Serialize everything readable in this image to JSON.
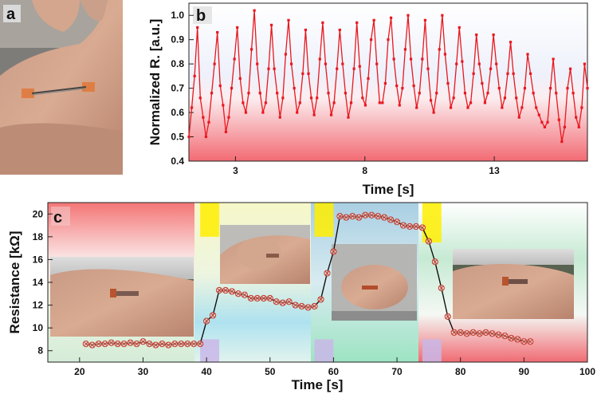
{
  "panels": {
    "a": {
      "label": "a"
    },
    "b": {
      "label": "b"
    },
    "c": {
      "label": "c"
    }
  },
  "colors": {
    "pulse_line": "#e8181f",
    "resistance_line": "#111111",
    "resistance_marker": "#c0392b"
  },
  "chart_data": [
    {
      "id": "b",
      "type": "line",
      "xlabel": "Time [s]",
      "ylabel": "Normalized R. [a.u.]",
      "xlim": [
        1.2,
        16.6
      ],
      "ylim": [
        0.4,
        1.05
      ],
      "xticks": [
        3,
        8,
        13
      ],
      "yticks": [
        0.4,
        0.5,
        0.6,
        0.7,
        0.8,
        0.9,
        1.0
      ],
      "grid": false,
      "series": [
        {
          "x": [
            1.2,
            1.31,
            1.42,
            1.53,
            1.64,
            1.75,
            1.86,
            1.97,
            2.08,
            2.19,
            2.3,
            2.41,
            2.52,
            2.63,
            2.74,
            2.85,
            2.96,
            3.07,
            3.18,
            3.29,
            3.4,
            3.51,
            3.62,
            3.73,
            3.84,
            3.95,
            4.06,
            4.17,
            4.28,
            4.39,
            4.5,
            4.61,
            4.72,
            4.83,
            4.94,
            5.05,
            5.16,
            5.27,
            5.38,
            5.49,
            5.6,
            5.71,
            5.82,
            5.93,
            6.04,
            6.15,
            6.26,
            6.37,
            6.48,
            6.59,
            6.7,
            6.81,
            6.92,
            7.03,
            7.14,
            7.25,
            7.36,
            7.47,
            7.58,
            7.69,
            7.8,
            7.91,
            8.02,
            8.13,
            8.24,
            8.35,
            8.46,
            8.57,
            8.68,
            8.79,
            8.9,
            9.01,
            9.12,
            9.23,
            9.34,
            9.45,
            9.56,
            9.67,
            9.78,
            9.89,
            10.0,
            10.11,
            10.22,
            10.33,
            10.44,
            10.55,
            10.66,
            10.77,
            10.88,
            10.99,
            11.1,
            11.21,
            11.32,
            11.43,
            11.54,
            11.65,
            11.76,
            11.87,
            11.98,
            12.09,
            12.2,
            12.31,
            12.42,
            12.53,
            12.64,
            12.75,
            12.86,
            12.97,
            13.08,
            13.19,
            13.3,
            13.41,
            13.52,
            13.63,
            13.74,
            13.85,
            13.96,
            14.07,
            14.18,
            14.29,
            14.4,
            14.51,
            14.62,
            14.73,
            14.84,
            14.95,
            15.06,
            15.17,
            15.28,
            15.39,
            15.5,
            15.61,
            15.72,
            15.83,
            15.94,
            16.05,
            16.16,
            16.27,
            16.38,
            16.49,
            16.6
          ],
          "y": [
            0.5,
            0.62,
            0.75,
            0.95,
            0.66,
            0.58,
            0.5,
            0.56,
            0.68,
            0.8,
            0.93,
            0.71,
            0.63,
            0.52,
            0.58,
            0.7,
            0.82,
            0.95,
            0.74,
            0.64,
            0.6,
            0.68,
            0.86,
            1.02,
            0.8,
            0.68,
            0.6,
            0.64,
            0.78,
            0.96,
            0.78,
            0.68,
            0.58,
            0.66,
            0.84,
            0.98,
            0.8,
            0.7,
            0.6,
            0.64,
            0.76,
            0.94,
            0.76,
            0.66,
            0.59,
            0.66,
            0.82,
            0.97,
            0.8,
            0.68,
            0.59,
            0.64,
            0.78,
            0.94,
            0.8,
            0.68,
            0.58,
            0.64,
            0.78,
            0.97,
            0.79,
            0.66,
            0.63,
            0.74,
            0.9,
            0.98,
            0.8,
            0.64,
            0.64,
            0.72,
            0.9,
            0.99,
            0.82,
            0.71,
            0.63,
            0.7,
            0.86,
            1.0,
            0.82,
            0.71,
            0.62,
            0.68,
            0.82,
            0.98,
            0.78,
            0.65,
            0.6,
            0.68,
            0.86,
            1.0,
            0.84,
            0.72,
            0.62,
            0.66,
            0.8,
            0.95,
            0.81,
            0.68,
            0.62,
            0.64,
            0.76,
            0.92,
            0.8,
            0.72,
            0.64,
            0.68,
            0.78,
            0.92,
            0.8,
            0.7,
            0.62,
            0.66,
            0.76,
            0.89,
            0.76,
            0.66,
            0.58,
            0.62,
            0.7,
            0.84,
            0.76,
            0.68,
            0.62,
            0.59,
            0.56,
            0.54,
            0.56,
            0.7,
            0.82,
            0.68,
            0.57,
            0.48,
            0.54,
            0.7,
            0.78,
            0.68,
            0.58,
            0.54,
            0.62,
            0.8,
            0.7
          ]
        }
      ]
    },
    {
      "id": "c",
      "type": "line",
      "xlabel": "Time [s]",
      "ylabel": "Resistance [kΩ]",
      "xlim": [
        15,
        100
      ],
      "ylim": [
        7,
        21
      ],
      "xticks": [
        20,
        30,
        40,
        50,
        60,
        70,
        80,
        90,
        100
      ],
      "yticks": [
        8,
        10,
        12,
        14,
        16,
        18,
        20
      ],
      "grid": false,
      "series": [
        {
          "x": [
            21,
            22,
            23,
            24,
            25,
            26,
            27,
            28,
            29,
            30,
            31,
            32,
            33,
            34,
            35,
            36,
            37,
            38,
            39,
            40,
            41,
            42,
            43,
            44,
            45,
            46,
            47,
            48,
            49,
            50,
            51,
            52,
            53,
            54,
            55,
            56,
            57,
            58,
            59,
            60,
            61,
            62,
            63,
            64,
            65,
            66,
            67,
            68,
            69,
            70,
            71,
            72,
            73,
            74,
            75,
            76,
            77,
            78,
            79,
            80,
            81,
            82,
            83,
            84,
            85,
            86,
            87,
            88,
            89,
            90,
            91
          ],
          "y": [
            8.6,
            8.5,
            8.6,
            8.6,
            8.7,
            8.6,
            8.6,
            8.7,
            8.6,
            8.8,
            8.6,
            8.5,
            8.6,
            8.5,
            8.6,
            8.6,
            8.6,
            8.6,
            8.6,
            10.6,
            11.1,
            13.3,
            13.3,
            13.2,
            13.0,
            12.9,
            12.6,
            12.6,
            12.6,
            12.6,
            12.3,
            12.2,
            12.3,
            12.0,
            11.9,
            11.8,
            11.9,
            12.5,
            14.8,
            16.7,
            19.8,
            19.7,
            19.8,
            19.7,
            19.9,
            19.9,
            19.8,
            19.7,
            19.5,
            19.3,
            19.0,
            18.9,
            18.9,
            18.8,
            17.6,
            15.8,
            13.5,
            11.0,
            9.6,
            9.6,
            9.5,
            9.6,
            9.5,
            9.6,
            9.5,
            9.4,
            9.3,
            9.1,
            9.0,
            8.8,
            8.8
          ]
        }
      ],
      "annotations": {
        "bands": [
          {
            "x": [
              39,
              42
            ],
            "ranges": [
              [
                18,
                21
              ],
              [
                6.5,
                9
              ]
            ],
            "colors": [
              "#ffee00",
              "#c9b7e8"
            ]
          },
          {
            "x": [
              57,
              60
            ],
            "ranges": [
              [
                18,
                21
              ],
              [
                6.5,
                9
              ]
            ],
            "colors": [
              "#ffee00",
              "#c9b7e8"
            ]
          },
          {
            "x": [
              74,
              77
            ],
            "ranges": [
              [
                17.5,
                21
              ],
              [
                6.5,
                9
              ]
            ],
            "colors": [
              "#ffee00",
              "#c9b7e8"
            ]
          }
        ]
      }
    }
  ]
}
